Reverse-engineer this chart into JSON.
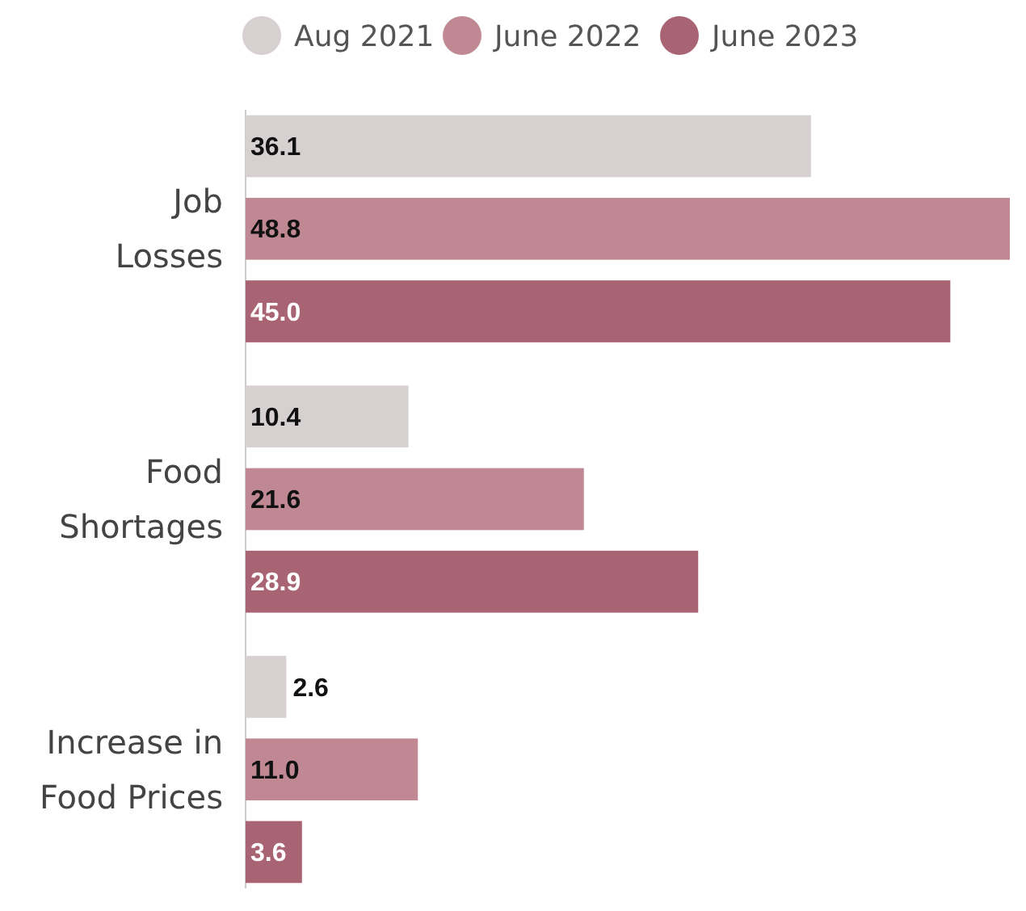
{
  "chart_data": {
    "type": "bar",
    "orientation": "horizontal",
    "categories": [
      "Job\nLosses",
      "Food\nShortages",
      "Increase in\nFood Prices"
    ],
    "series": [
      {
        "name": "Aug 2021",
        "color": "#d6d0d1",
        "values": [
          36.1,
          10.4,
          2.6
        ],
        "value_labels": [
          "36.1",
          "10.4",
          "2.6"
        ]
      },
      {
        "name": "June 2022",
        "color": "#c08892",
        "values": [
          48.8,
          21.6,
          11.0
        ],
        "value_labels": [
          "48.8",
          "21.6",
          "11.0"
        ]
      },
      {
        "name": "June 2023",
        "color": "#a96473",
        "values": [
          45.0,
          28.9,
          3.6
        ],
        "value_labels": [
          "45.0",
          "28.9",
          "3.6"
        ]
      }
    ],
    "legend": "top"
  }
}
